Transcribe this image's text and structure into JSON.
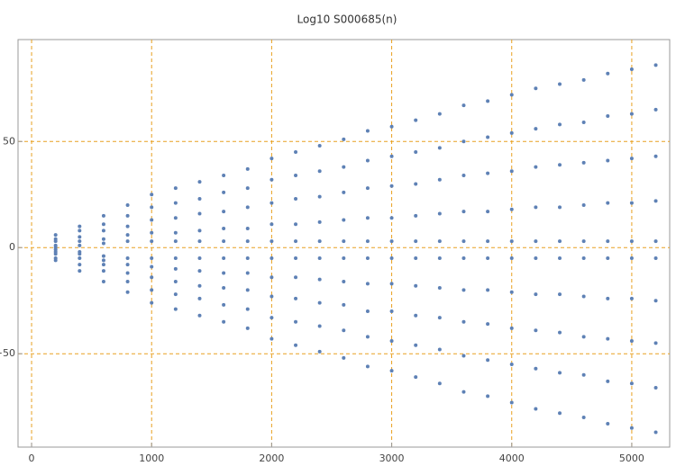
{
  "chart_data": {
    "type": "scatter",
    "title": "Log10 S000685(n)",
    "xlim": [
      -113,
      5316
    ],
    "ylim": [
      -94,
      98
    ],
    "xticks": [
      0,
      1000,
      2000,
      3000,
      4000,
      5000
    ],
    "yticks": [
      {
        "value": -50,
        "label": "−50"
      },
      0,
      50
    ],
    "grid": true,
    "grid_color": "#e8a020",
    "series": [
      {
        "color": "#5e81b5",
        "x": [
          200,
          200,
          200,
          200,
          200,
          200,
          200,
          200,
          200,
          200,
          400,
          400,
          400,
          400,
          400,
          400,
          400,
          400,
          400,
          400,
          600,
          600,
          600,
          600,
          600,
          600,
          600,
          600,
          600,
          600,
          800,
          800,
          800,
          800,
          800,
          800,
          800,
          800,
          800,
          800,
          1000,
          1000,
          1000,
          1000,
          1000,
          1000,
          1000,
          1000,
          1000,
          1000,
          1200,
          1200,
          1200,
          1200,
          1200,
          1200,
          1200,
          1200,
          1200,
          1200,
          1400,
          1400,
          1400,
          1400,
          1400,
          1400,
          1400,
          1400,
          1400,
          1400,
          1600,
          1600,
          1600,
          1600,
          1600,
          1600,
          1600,
          1600,
          1600,
          1600,
          1800,
          1800,
          1800,
          1800,
          1800,
          1800,
          1800,
          1800,
          1800,
          1800,
          2000,
          2000,
          2000,
          2000,
          2000,
          2000,
          2000,
          2000,
          2000,
          2000,
          2200,
          2200,
          2200,
          2200,
          2200,
          2200,
          2200,
          2200,
          2200,
          2200,
          2400,
          2400,
          2400,
          2400,
          2400,
          2400,
          2400,
          2400,
          2400,
          2400,
          2600,
          2600,
          2600,
          2600,
          2600,
          2600,
          2600,
          2600,
          2600,
          2600,
          2800,
          2800,
          2800,
          2800,
          2800,
          2800,
          2800,
          2800,
          2800,
          2800,
          3000,
          3000,
          3000,
          3000,
          3000,
          3000,
          3000,
          3000,
          3000,
          3000,
          3200,
          3200,
          3200,
          3200,
          3200,
          3200,
          3200,
          3200,
          3200,
          3200,
          3400,
          3400,
          3400,
          3400,
          3400,
          3400,
          3400,
          3400,
          3400,
          3400,
          3600,
          3600,
          3600,
          3600,
          3600,
          3600,
          3600,
          3600,
          3600,
          3600,
          3800,
          3800,
          3800,
          3800,
          3800,
          3800,
          3800,
          3800,
          3800,
          3800,
          4000,
          4000,
          4000,
          4000,
          4000,
          4000,
          4000,
          4000,
          4000,
          4000,
          4200,
          4200,
          4200,
          4200,
          4200,
          4200,
          4200,
          4200,
          4200,
          4200,
          4400,
          4400,
          4400,
          4400,
          4400,
          4400,
          4400,
          4400,
          4400,
          4400,
          4600,
          4600,
          4600,
          4600,
          4600,
          4600,
          4600,
          4600,
          4600,
          4600,
          4800,
          4800,
          4800,
          4800,
          4800,
          4800,
          4800,
          4800,
          4800,
          4800,
          5000,
          5000,
          5000,
          5000,
          5000,
          5000,
          5000,
          5000,
          5000,
          5000,
          5200,
          5200,
          5200,
          5200,
          5200,
          5200,
          5200,
          5200,
          5200,
          5200
        ],
        "values": [
          6,
          4,
          3,
          1,
          0,
          -1,
          -2,
          -3,
          -5,
          -6,
          10,
          8,
          5,
          3,
          1,
          -2,
          -3,
          -5,
          -8,
          -11,
          15,
          11,
          8,
          4,
          2,
          -4,
          -6,
          -8,
          -11,
          -16,
          20,
          15,
          10,
          6,
          3,
          -5,
          -8,
          -12,
          -16,
          -21,
          25,
          19,
          13,
          7,
          3,
          -5,
          -9,
          -14,
          -20,
          -26,
          28,
          21,
          14,
          7,
          3,
          -5,
          -10,
          -16,
          -22,
          -29,
          31,
          23,
          16,
          8,
          3,
          -5,
          -11,
          -18,
          -24,
          -32,
          34,
          26,
          17,
          9,
          3,
          -5,
          -12,
          -19,
          -27,
          -35,
          37,
          28,
          19,
          9,
          3,
          -5,
          -12,
          -20,
          -29,
          -38,
          42,
          32,
          21,
          11,
          3,
          -5,
          -14,
          -23,
          -33,
          -43,
          45,
          34,
          23,
          11,
          3,
          -5,
          -14,
          -24,
          -35,
          -46,
          48,
          36,
          24,
          12,
          3,
          -5,
          -15,
          -26,
          -37,
          -49,
          51,
          38,
          26,
          13,
          3,
          -5,
          -16,
          -27,
          -39,
          -52,
          55,
          41,
          28,
          14,
          3,
          -5,
          -17,
          -30,
          -42,
          -56,
          57,
          43,
          29,
          14,
          3,
          -5,
          -17,
          -30,
          -44,
          -58,
          60,
          45,
          30,
          15,
          3,
          -5,
          -18,
          -32,
          -46,
          -61,
          63,
          47,
          32,
          16,
          3,
          -5,
          -19,
          -33,
          -48,
          -64,
          67,
          50,
          34,
          17,
          3,
          -5,
          -20,
          -35,
          -51,
          -68,
          69,
          52,
          35,
          17,
          3,
          -5,
          -20,
          -36,
          -53,
          -70,
          72,
          54,
          36,
          18,
          3,
          -5,
          -21,
          -38,
          -55,
          -73,
          75,
          56,
          38,
          19,
          3,
          -5,
          -22,
          -39,
          -57,
          -76,
          77,
          58,
          39,
          19,
          3,
          -5,
          -22,
          -40,
          -59,
          -78,
          79,
          59,
          40,
          20,
          3,
          -5,
          -23,
          -42,
          -60,
          -80,
          82,
          62,
          41,
          21,
          3,
          -5,
          -24,
          -43,
          -63,
          -83,
          84,
          63,
          42,
          21,
          3,
          -5,
          -24,
          -44,
          -64,
          -85,
          86,
          65,
          43,
          22,
          3,
          -5,
          -25,
          -45,
          -66,
          -87
        ]
      }
    ]
  }
}
